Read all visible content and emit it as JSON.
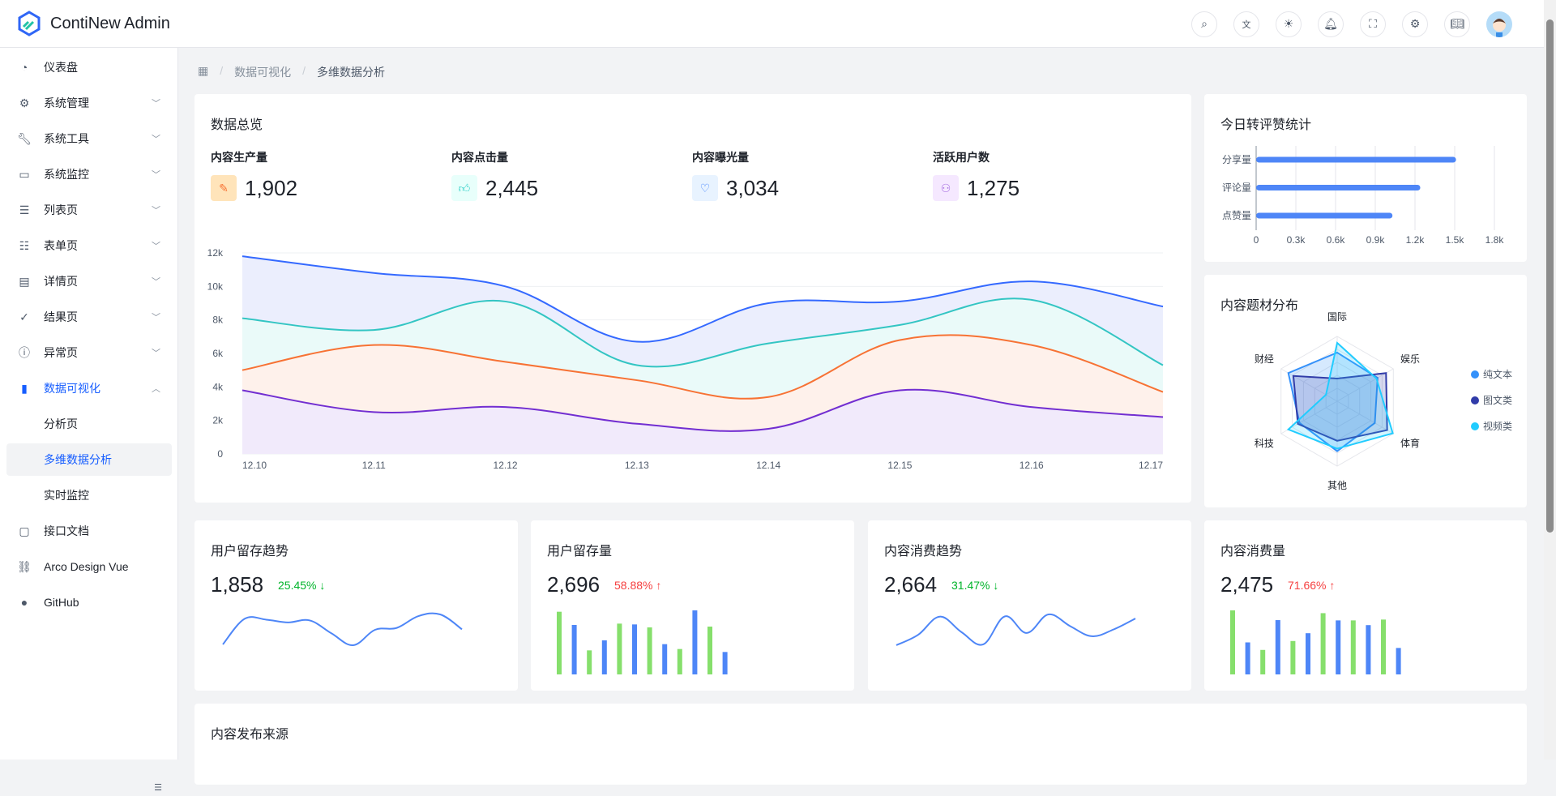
{
  "app": {
    "title": "ContiNew Admin"
  },
  "header": {
    "icons": [
      "search-icon",
      "translate-icon",
      "theme-sun-icon",
      "bell-icon",
      "fullscreen-icon",
      "settings-icon",
      "book-icon"
    ]
  },
  "sidebar": {
    "items": [
      {
        "label": "仪表盘",
        "icon": "dashboard-icon",
        "chevron": ""
      },
      {
        "label": "系统管理",
        "icon": "gear-icon",
        "chevron": "down"
      },
      {
        "label": "系统工具",
        "icon": "wrench-icon",
        "chevron": "down"
      },
      {
        "label": "系统监控",
        "icon": "monitor-icon",
        "chevron": "down"
      },
      {
        "label": "列表页",
        "icon": "list-icon",
        "chevron": "down"
      },
      {
        "label": "表单页",
        "icon": "checklist-icon",
        "chevron": "down"
      },
      {
        "label": "详情页",
        "icon": "file-icon",
        "chevron": "down"
      },
      {
        "label": "结果页",
        "icon": "check-circle-icon",
        "chevron": "down"
      },
      {
        "label": "异常页",
        "icon": "exclamation-circle-icon",
        "chevron": "down"
      },
      {
        "label": "数据可视化",
        "icon": "bar-chart-icon",
        "chevron": "up",
        "expanded": true
      },
      {
        "label": "分析页",
        "sub": true
      },
      {
        "label": "多维数据分析",
        "sub": true,
        "active": true
      },
      {
        "label": "实时监控",
        "sub": true
      },
      {
        "label": "接口文档",
        "icon": "code-file-icon",
        "chevron": ""
      },
      {
        "label": "Arco Design Vue",
        "icon": "link-icon",
        "chevron": ""
      },
      {
        "label": "GitHub",
        "icon": "github-icon",
        "chevron": ""
      }
    ]
  },
  "breadcrumb": [
    "数据可视化",
    "多维数据分析"
  ],
  "overview": {
    "title": "数据总览",
    "stats": [
      {
        "label": "内容生产量",
        "value": "1,902",
        "icon": "edit-icon",
        "color": "#f77234",
        "bg": "#ffe4ba"
      },
      {
        "label": "内容点击量",
        "value": "2,445",
        "icon": "thumb-up-icon",
        "color": "#33d1c9",
        "bg": "#e8fffb"
      },
      {
        "label": "内容曝光量",
        "value": "3,034",
        "icon": "heart-icon",
        "color": "#3c7eff",
        "bg": "#e8f3ff"
      },
      {
        "label": "活跃用户数",
        "value": "1,275",
        "icon": "user-icon",
        "color": "#a871e3",
        "bg": "#f5e8ff"
      }
    ]
  },
  "chart_data": [
    {
      "type": "area",
      "x": [
        "12.10",
        "12.11",
        "12.12",
        "12.13",
        "12.14",
        "12.15",
        "12.16",
        "12.17"
      ],
      "ylim": [
        0,
        12000
      ],
      "yticks": [
        "0",
        "2k",
        "4k",
        "6k",
        "8k",
        "10k",
        "12k"
      ],
      "grid": true,
      "series": [
        {
          "values": [
            11800,
            10800,
            10000,
            6700,
            9000,
            9100,
            10300,
            8800
          ],
          "color": "#3469ff",
          "fill": "#ebeefd"
        },
        {
          "values": [
            8100,
            7400,
            9100,
            5300,
            6600,
            7700,
            9200,
            5300
          ],
          "color": "#33c5c3",
          "fill": "#eafaf9"
        },
        {
          "values": [
            5000,
            6500,
            5500,
            4400,
            3400,
            6800,
            6500,
            3700
          ],
          "color": "#f77234",
          "fill": "#fef1eb"
        },
        {
          "values": [
            3800,
            2500,
            2800,
            1800,
            1500,
            3800,
            2800,
            2200
          ],
          "color": "#722ed1",
          "fill": "#f1eafb"
        }
      ]
    },
    {
      "type": "bar",
      "orientation": "horizontal",
      "title": "今日转评赞统计",
      "categories": [
        "分享量",
        "评论量",
        "点赞量"
      ],
      "values": [
        1510,
        1240,
        1030
      ],
      "xlim": [
        0,
        1800
      ],
      "xticks": [
        "0",
        "0.3k",
        "0.6k",
        "0.9k",
        "1.2k",
        "1.5k",
        "1.8k"
      ],
      "color": "#4e86f7",
      "grid": true
    },
    {
      "type": "radar",
      "title": "内容题材分布",
      "indicators": [
        "国际",
        "娱乐",
        "体育",
        "其他",
        "科技",
        "财经"
      ],
      "max": 100,
      "legend": "right",
      "series": [
        {
          "name": "纯文本",
          "values": [
            75,
            72,
            67,
            77,
            67,
            87
          ],
          "color": "#3491fa"
        },
        {
          "name": "图文类",
          "values": [
            35,
            87,
            89,
            61,
            70,
            78
          ],
          "color": "#313ca9"
        },
        {
          "name": "视频类",
          "values": [
            90,
            70,
            99,
            73,
            87,
            20
          ],
          "color": "#21ccff"
        }
      ]
    },
    {
      "type": "line",
      "title": "用户留存趋势",
      "values": [
        35,
        128,
        125,
        115,
        122,
        75,
        32,
        88,
        95,
        138,
        144,
        90
      ],
      "color": "#4e86f7"
    },
    {
      "type": "bar",
      "title": "用户留存量",
      "values": [
        232,
        183,
        89,
        126,
        188,
        185,
        174,
        112,
        94,
        237,
        177,
        83
      ],
      "colors": [
        "#86df6c",
        "#4e86f7"
      ]
    },
    {
      "type": "line",
      "title": "内容消费趋势",
      "values": [
        37,
        75,
        142,
        85,
        40,
        143,
        82,
        150,
        107,
        70,
        95,
        135
      ],
      "color": "#4e86f7"
    },
    {
      "type": "bar",
      "title": "内容消费量",
      "values": [
        230,
        115,
        88,
        195,
        120,
        148,
        220,
        194,
        194,
        177,
        197,
        95
      ],
      "colors": [
        "#86df6c",
        "#4e86f7"
      ]
    }
  ],
  "minis": [
    {
      "title": "用户留存趋势",
      "value": "1,858",
      "pct": "25.45%",
      "dir": "down"
    },
    {
      "title": "用户留存量",
      "value": "2,696",
      "pct": "58.88%",
      "dir": "up"
    },
    {
      "title": "内容消费趋势",
      "value": "2,664",
      "pct": "31.47%",
      "dir": "down"
    },
    {
      "title": "内容消费量",
      "value": "2,475",
      "pct": "71.66%",
      "dir": "up"
    }
  ],
  "colors": {
    "up": "#f53f3f",
    "down": "#00b42a",
    "accent": "#165dff"
  },
  "bottom": {
    "title": "内容发布来源"
  }
}
